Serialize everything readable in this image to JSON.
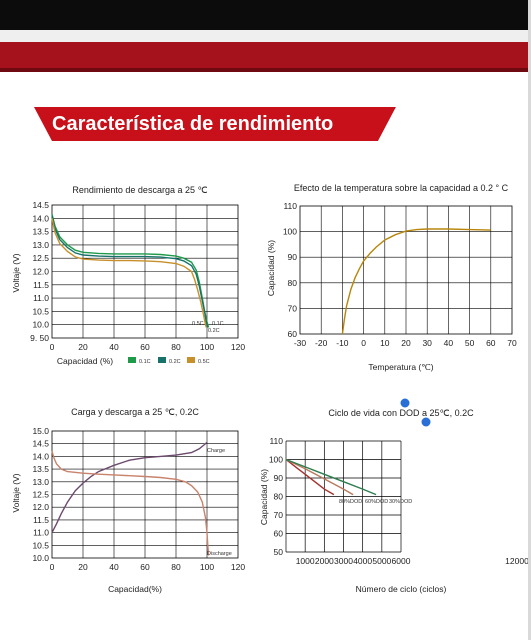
{
  "header": {
    "title": "Característica de rendimiento",
    "accent_color": "#c8101a"
  },
  "chart_data": [
    {
      "id": "discharge",
      "type": "line",
      "title": "Rendimiento de descarga a 25 ℃",
      "xlabel": "Capacidad (%)",
      "ylabel": "Voltaje (V)",
      "xlim": [
        0,
        120
      ],
      "ylim": [
        9.5,
        14.5
      ],
      "xticks": [
        "0",
        "20",
        "40",
        "60",
        "80",
        "100",
        "120"
      ],
      "yticks": [
        "9. 50",
        "10.0",
        "10.5",
        "11.0",
        "11.5",
        "12.0",
        "12.5",
        "13.0",
        "13.5",
        "14.0",
        "14.5"
      ],
      "grid": true,
      "legend_position": "bottom-right",
      "annotations": [
        "0.5C",
        "0.1C",
        "0.2C"
      ],
      "series": [
        {
          "name": "0.1C",
          "color": "#1f9a4a",
          "x": [
            0,
            2,
            5,
            10,
            15,
            20,
            30,
            40,
            50,
            60,
            70,
            80,
            85,
            90,
            93,
            95,
            97,
            98.5,
            100,
            101
          ],
          "y": [
            14.15,
            13.7,
            13.3,
            13.0,
            12.8,
            12.72,
            12.68,
            12.66,
            12.66,
            12.66,
            12.64,
            12.58,
            12.5,
            12.35,
            12.05,
            11.6,
            11.0,
            10.5,
            10.1,
            9.9
          ]
        },
        {
          "name": "0.2C",
          "color": "#17736a",
          "x": [
            0,
            2,
            5,
            10,
            15,
            20,
            30,
            40,
            50,
            60,
            70,
            80,
            85,
            90,
            93,
            95,
            97,
            98.5,
            99.5,
            100.5
          ],
          "y": [
            14.1,
            13.6,
            13.2,
            12.9,
            12.7,
            12.62,
            12.58,
            12.56,
            12.56,
            12.56,
            12.54,
            12.48,
            12.4,
            12.22,
            11.9,
            11.45,
            10.9,
            10.45,
            10.1,
            9.9
          ]
        },
        {
          "name": "0.5C",
          "color": "#c8902a",
          "x": [
            0,
            2,
            5,
            10,
            15,
            20,
            30,
            40,
            50,
            60,
            70,
            80,
            85,
            90,
            92,
            94,
            96,
            97.5,
            98.5,
            99.5
          ],
          "y": [
            14.0,
            13.45,
            13.05,
            12.75,
            12.55,
            12.47,
            12.43,
            12.41,
            12.41,
            12.4,
            12.37,
            12.3,
            12.2,
            12.0,
            11.7,
            11.3,
            10.85,
            10.45,
            10.15,
            9.9
          ]
        }
      ]
    },
    {
      "id": "temperature",
      "type": "line",
      "title": "Efecto de la temperatura sobre la capacidad a 0.2 ° C",
      "xlabel": "Temperatura (℃)",
      "ylabel": "Capacidad (%)",
      "xlim": [
        -30,
        70
      ],
      "ylim": [
        60,
        110
      ],
      "xticks": [
        "-30",
        "-20",
        "-10",
        "0",
        "10",
        "20",
        "30",
        "40",
        "50",
        "60",
        "70"
      ],
      "yticks": [
        "60",
        "70",
        "80",
        "90",
        "100",
        "110"
      ],
      "grid": true,
      "series": [
        {
          "color": "#b8860b",
          "x": [
            -10,
            -9,
            -8,
            -6,
            -4,
            -2,
            0,
            3,
            6,
            10,
            15,
            20,
            25,
            30,
            40,
            50,
            60
          ],
          "y": [
            60,
            66,
            71,
            77.5,
            82,
            85.5,
            88.5,
            91.5,
            94,
            96.7,
            98.8,
            100.2,
            100.8,
            101,
            101,
            100.8,
            100.6
          ]
        }
      ]
    },
    {
      "id": "charge_discharge",
      "type": "line",
      "title": "Carga y descarga a 25 ℃, 0.2C",
      "xlabel": "Capacidad(%)",
      "ylabel": "Voltaje (V)",
      "xlim": [
        0,
        120
      ],
      "ylim": [
        10.0,
        15.0
      ],
      "xticks": [
        "0",
        "20",
        "40",
        "60",
        "80",
        "100",
        "120"
      ],
      "yticks": [
        "10.0",
        "10.5",
        "11.0",
        "11.5",
        "12.0",
        "12.5",
        "13.0",
        "13.5",
        "14.0",
        "14.5",
        "15.0"
      ],
      "grid": true,
      "annotations": [
        "Charge",
        "Discharge"
      ],
      "series": [
        {
          "name": "Charge",
          "color": "#6b4a6e",
          "x": [
            0,
            3,
            6,
            10,
            15,
            20,
            25,
            30,
            40,
            50,
            60,
            70,
            80,
            90,
            95,
            98,
            100
          ],
          "y": [
            11.0,
            11.35,
            11.75,
            12.2,
            12.65,
            12.95,
            13.2,
            13.4,
            13.65,
            13.85,
            13.95,
            14.0,
            14.05,
            14.15,
            14.3,
            14.45,
            14.55
          ]
        },
        {
          "name": "Discharge",
          "color": "#c9836c",
          "x": [
            0,
            1.5,
            3,
            6,
            10,
            20,
            30,
            40,
            50,
            60,
            70,
            80,
            86,
            90,
            94,
            97,
            99,
            100,
            100.5,
            101
          ],
          "y": [
            14.2,
            13.9,
            13.7,
            13.5,
            13.4,
            13.34,
            13.3,
            13.27,
            13.24,
            13.21,
            13.17,
            13.1,
            13.0,
            12.85,
            12.6,
            12.2,
            11.6,
            11.0,
            10.5,
            10.1
          ]
        }
      ]
    },
    {
      "id": "cycle_life",
      "type": "line",
      "title": "Ciclo de vida con DOD a 25℃, 0.2C",
      "xlabel": "Número de ciclo (ciclos)",
      "ylabel": "Capacidad (%)",
      "xlim": [
        0,
        12000
      ],
      "ylim": [
        50,
        110
      ],
      "xticks": [
        "1000",
        "2000",
        "3000",
        "4000",
        "5000",
        "6000",
        "12000"
      ],
      "yticks": [
        "50",
        "60",
        "70",
        "80",
        "90",
        "100",
        "110"
      ],
      "grid": true,
      "annotations": [
        "80%DOD",
        "60%DOD",
        "30%DOD"
      ],
      "series": [
        {
          "name": "80%DOD",
          "color": "#a3322e",
          "x": [
            0,
            500,
            1000,
            1500,
            2000,
            2500
          ],
          "y": [
            100,
            96,
            92,
            88,
            84,
            81
          ]
        },
        {
          "name": "60%DOD",
          "color": "#b97a5d",
          "x": [
            0,
            1000,
            2000,
            3000,
            3500
          ],
          "y": [
            100,
            95,
            89.5,
            84,
            81
          ]
        },
        {
          "name": "30%DOD",
          "color": "#2e7d4f",
          "x": [
            0,
            1000,
            2000,
            3000,
            4000,
            4700
          ],
          "y": [
            100,
            96,
            92,
            88,
            84,
            81
          ]
        }
      ]
    }
  ]
}
